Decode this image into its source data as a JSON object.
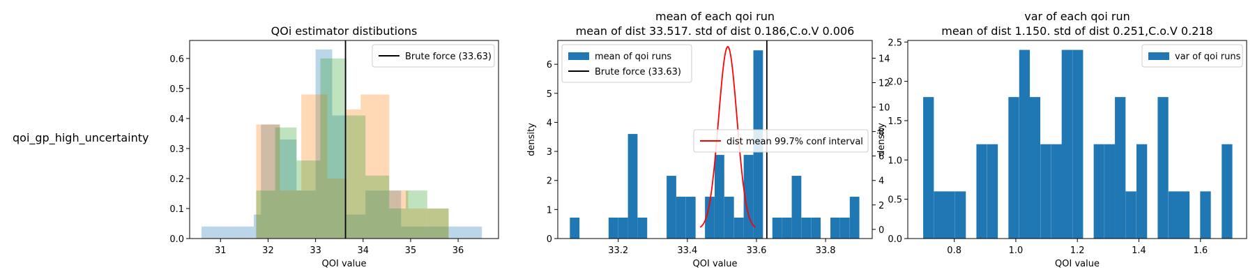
{
  "row_label": "qoi_gp_high_uncertainty",
  "colors": {
    "blue": "#1f77b4",
    "orange": "#ff7f0e",
    "green": "#2ca02c",
    "black": "#000000",
    "red": "#ff0000"
  },
  "chart_data": [
    {
      "type": "histogram",
      "title": "QOi estimator distibutions",
      "xlabel": "QOI value",
      "ylabel": "",
      "xlim": [
        30.35,
        36.85
      ],
      "ylim": [
        0,
        0.66
      ],
      "xticks": [
        31,
        32,
        33,
        34,
        35,
        36
      ],
      "yticks": [
        0.0,
        0.1,
        0.2,
        0.3,
        0.4,
        0.5,
        0.6
      ],
      "legend_position": "upper right",
      "legend": [
        {
          "label": "Brute force (33.63)",
          "kind": "line",
          "color": "#000000"
        }
      ],
      "series": [
        {
          "color": "#1f77b4",
          "alpha": 0.3,
          "bins": [
            [
              30.6,
              31.7,
              0.04
            ],
            [
              31.7,
              31.85,
              0.08
            ],
            [
              31.85,
              32.25,
              0.38
            ],
            [
              32.25,
              32.6,
              0.33
            ],
            [
              32.6,
              33.0,
              0.16
            ],
            [
              33.0,
              33.35,
              0.63
            ],
            [
              33.35,
              33.65,
              0.41
            ],
            [
              33.65,
              34.05,
              0.08
            ],
            [
              34.05,
              34.4,
              0.16
            ],
            [
              34.4,
              34.8,
              0.16
            ],
            [
              34.8,
              35.2,
              0.04
            ],
            [
              35.2,
              35.8,
              0.04
            ],
            [
              35.8,
              36.5,
              0.04
            ]
          ]
        },
        {
          "color": "#ff7f0e",
          "alpha": 0.3,
          "bins": [
            [
              31.75,
              32.25,
              0.38
            ],
            [
              32.25,
              32.7,
              0.16
            ],
            [
              32.7,
              33.25,
              0.48
            ],
            [
              33.25,
              33.65,
              0.2
            ],
            [
              33.65,
              33.95,
              0.43
            ],
            [
              33.95,
              34.55,
              0.48
            ],
            [
              34.55,
              34.95,
              0.16
            ],
            [
              34.95,
              35.4,
              0.1
            ],
            [
              35.4,
              35.8,
              0.1
            ]
          ]
        },
        {
          "color": "#2ca02c",
          "alpha": 0.3,
          "bins": [
            [
              31.75,
              32.15,
              0.16
            ],
            [
              32.15,
              32.6,
              0.37
            ],
            [
              32.6,
              33.1,
              0.26
            ],
            [
              33.1,
              33.65,
              0.6
            ],
            [
              33.65,
              34.05,
              0.41
            ],
            [
              34.05,
              34.55,
              0.21
            ],
            [
              34.55,
              34.9,
              0.1
            ],
            [
              34.9,
              35.35,
              0.16
            ],
            [
              35.35,
              35.8,
              0.1
            ]
          ]
        }
      ],
      "vline": {
        "x": 33.63,
        "color": "#000000"
      }
    },
    {
      "type": "histogram",
      "title_lines": [
        "mean of each qoi run",
        "mean of dist 33.517. std of dist 0.186,C.o.V 0.006"
      ],
      "xlabel": "QOI value",
      "ylabel": "density",
      "xlim": [
        33.025,
        33.935
      ],
      "ylim": [
        0,
        6.82
      ],
      "ylim_right": [
        -0.75,
        15.45
      ],
      "xticks": [
        33.2,
        33.4,
        33.6,
        33.8
      ],
      "xtick_labels": [
        "33.2",
        "33.4",
        "33.6",
        "33.8"
      ],
      "yticks": [
        0,
        1,
        2,
        3,
        4,
        5,
        6
      ],
      "yticks_right": [
        0,
        2,
        4,
        6,
        8,
        10,
        12,
        14
      ],
      "legend_left": [
        {
          "label": "mean of qoi runs",
          "kind": "patch",
          "color": "#1f77b4"
        },
        {
          "label": "Brute force (33.63)",
          "kind": "line",
          "color": "#000000"
        }
      ],
      "legend_right": [
        {
          "label": "dist mean 99.7% conf interval",
          "kind": "line",
          "color": "#ff0000"
        }
      ],
      "bin_width": 0.0278,
      "bins": [
        [
          33.06,
          0.72
        ],
        [
          33.172,
          0.72
        ],
        [
          33.2,
          0.72
        ],
        [
          33.228,
          3.6
        ],
        [
          33.256,
          0.72
        ],
        [
          33.34,
          2.16
        ],
        [
          33.368,
          1.44
        ],
        [
          33.396,
          1.44
        ],
        [
          33.451,
          1.44
        ],
        [
          33.479,
          2.88
        ],
        [
          33.507,
          1.44
        ],
        [
          33.535,
          0.72
        ],
        [
          33.563,
          2.88
        ],
        [
          33.591,
          6.48
        ],
        [
          33.646,
          0.72
        ],
        [
          33.674,
          0.72
        ],
        [
          33.702,
          2.16
        ],
        [
          33.73,
          0.72
        ],
        [
          33.758,
          0.72
        ],
        [
          33.814,
          0.72
        ],
        [
          33.842,
          0.72
        ],
        [
          33.87,
          1.44
        ]
      ],
      "vline": {
        "x": 33.63,
        "color": "#000000"
      },
      "normal_curve": {
        "mean": 33.517,
        "sd": 0.0267,
        "x_from": 33.437,
        "x_to": 33.597,
        "color": "#ff0000"
      }
    },
    {
      "type": "histogram",
      "title_lines": [
        "var of each qoi run",
        "mean of dist 1.150. std of dist 0.251,C.o.V 0.218"
      ],
      "xlabel": "QOI value",
      "ylabel": "density",
      "xlim": [
        0.649,
        1.75
      ],
      "ylim": [
        0,
        2.52
      ],
      "xticks": [
        0.8,
        1.0,
        1.2,
        1.4,
        1.6
      ],
      "xtick_labels": [
        "0.8",
        "1.0",
        "1.2",
        "1.4",
        "1.6"
      ],
      "yticks": [
        0.0,
        0.5,
        1.0,
        1.5,
        2.0,
        2.5
      ],
      "legend_position": "upper right",
      "legend": [
        {
          "label": "var of qoi runs",
          "kind": "patch",
          "color": "#1f77b4"
        }
      ],
      "bin_width": 0.0346,
      "bins": [
        [
          0.699,
          1.8
        ],
        [
          0.734,
          0.6
        ],
        [
          0.768,
          0.6
        ],
        [
          0.803,
          0.6
        ],
        [
          0.872,
          1.2
        ],
        [
          0.907,
          1.2
        ],
        [
          0.976,
          1.8
        ],
        [
          1.011,
          2.4
        ],
        [
          1.045,
          1.8
        ],
        [
          1.08,
          1.2
        ],
        [
          1.115,
          1.2
        ],
        [
          1.149,
          2.4
        ],
        [
          1.184,
          2.4
        ],
        [
          1.253,
          1.2
        ],
        [
          1.288,
          1.2
        ],
        [
          1.322,
          1.8
        ],
        [
          1.357,
          0.6
        ],
        [
          1.392,
          1.2
        ],
        [
          1.461,
          1.8
        ],
        [
          1.496,
          0.6
        ],
        [
          1.53,
          0.6
        ],
        [
          1.599,
          0.6
        ],
        [
          1.669,
          1.2
        ]
      ]
    }
  ]
}
